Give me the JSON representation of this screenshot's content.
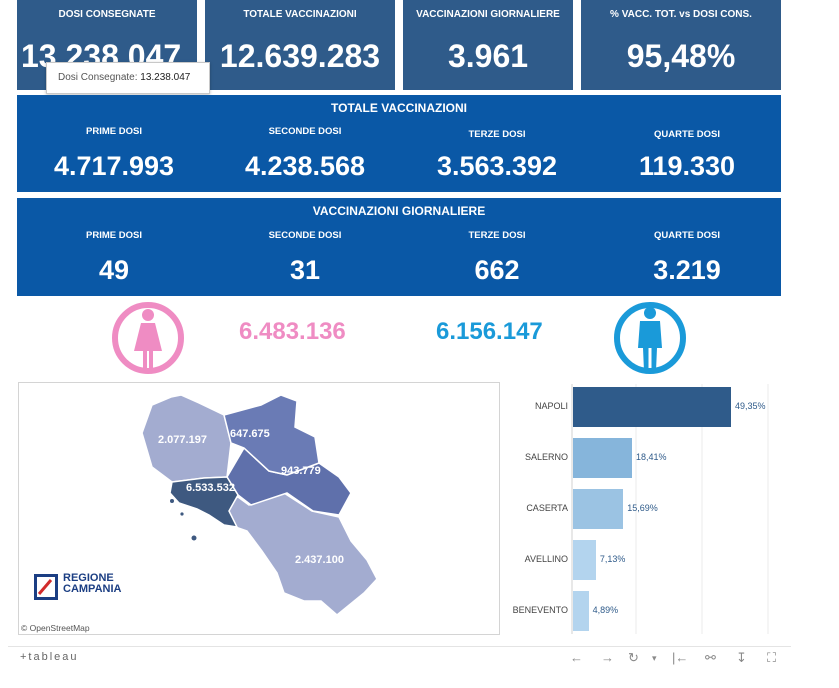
{
  "kpis": [
    {
      "label": "DOSI  CONSEGNATE",
      "value": "13.238.047"
    },
    {
      "label": "TOTALE VACCINAZIONI",
      "value": "12.639.283"
    },
    {
      "label": "VACCINAZIONI GIORNALIERE",
      "value": "3.961"
    },
    {
      "label": "% VACC. TOT. vs DOSI CONS.",
      "value": "95,48%"
    }
  ],
  "tooltip": {
    "label": "Dosi Consegnate:",
    "value": "13.238.047"
  },
  "totale": {
    "title": "TOTALE VACCINAZIONI",
    "cols": [
      {
        "label": "PRIME DOSI",
        "value": "4.717.993"
      },
      {
        "label": "SECONDE DOSI",
        "value": "4.238.568"
      },
      {
        "label": "TERZE DOSI",
        "value": "3.563.392"
      },
      {
        "label": "QUARTE DOSI",
        "value": "119.330"
      }
    ]
  },
  "giornaliere": {
    "title": "VACCINAZIONI GIORNALIERE",
    "cols": [
      {
        "label": "PRIME DOSI",
        "value": "49"
      },
      {
        "label": "SECONDE DOSI",
        "value": "31"
      },
      {
        "label": "TERZE DOSI",
        "value": "662"
      },
      {
        "label": "QUARTE DOSI",
        "value": "3.219"
      }
    ]
  },
  "gender": {
    "female": "6.483.136",
    "male": "6.156.147"
  },
  "map": {
    "regions": [
      "2.077.197",
      "647.675",
      "943.779",
      "6.533.532",
      "2.437.100"
    ],
    "logo_line1": "REGIONE",
    "logo_line2": "CAMPANIA",
    "attribution": "© OpenStreetMap"
  },
  "chart_data": {
    "type": "bar",
    "orientation": "horizontal",
    "categories": [
      "NAPOLI",
      "SALERNO",
      "CASERTA",
      "AVELLINO",
      "BENEVENTO"
    ],
    "values": [
      49.35,
      18.41,
      15.69,
      7.13,
      4.89
    ],
    "labels": [
      "49,35%",
      "18,41%",
      "15,69%",
      "7,13%",
      "4,89%"
    ],
    "colors": [
      "#2f5b8a",
      "#86b5db",
      "#9bc3e3",
      "#b3d4ee",
      "#b3d4ee"
    ]
  },
  "footer": {
    "logo": "+tableau"
  },
  "colors": {
    "female": "#ef8cc3",
    "male": "#1a9ad9",
    "kpi_tile": "#2f5b8a",
    "band": "#0a58a6"
  }
}
